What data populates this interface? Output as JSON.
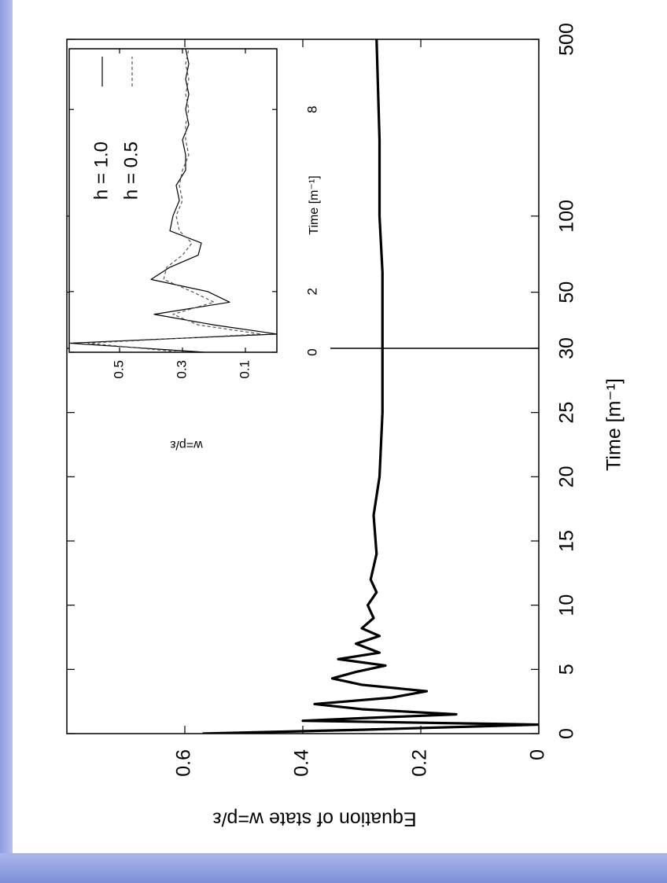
{
  "chart_data": [
    {
      "type": "line",
      "xlabel": "Time [m⁻¹]",
      "ylabel": "Equation of state w=p/ε",
      "xlim": [
        0,
        500
      ],
      "xbreak": 30,
      "xscale_above_break": "log",
      "xticks": [
        0,
        5,
        10,
        15,
        20,
        25,
        30,
        50,
        100,
        500
      ],
      "ylim": [
        0,
        0.8
      ],
      "yticks": [
        0,
        0.2,
        0.4,
        0.6
      ],
      "x": [
        0,
        0.3,
        0.7,
        1.0,
        1.2,
        1.5,
        1.9,
        2.3,
        2.8,
        3.3,
        3.8,
        4.3,
        4.8,
        5.3,
        5.8,
        6.3,
        7,
        7.6,
        8.2,
        9,
        10,
        11,
        12,
        14,
        17,
        20,
        25,
        30,
        40,
        60,
        100,
        200,
        500
      ],
      "series": [
        {
          "color": "#000000",
          "line_style": "solid",
          "values": [
            0.57,
            0.3,
            0.0,
            0.4,
            0.3,
            0.14,
            0.3,
            0.38,
            0.25,
            0.19,
            0.3,
            0.35,
            0.31,
            0.26,
            0.34,
            0.27,
            0.31,
            0.27,
            0.3,
            0.28,
            0.29,
            0.275,
            0.285,
            0.275,
            0.28,
            0.27,
            0.265,
            0.265,
            0.265,
            0.265,
            0.27,
            0.27,
            0.275
          ]
        }
      ]
    },
    {
      "type": "line",
      "xlabel": "Time [m⁻¹]",
      "ylabel": "w=p/ε",
      "xlim": [
        0,
        10
      ],
      "xticks": [
        0,
        2,
        8
      ],
      "ylim": [
        0,
        0.66
      ],
      "yticks": [
        0.1,
        0.3,
        0.5
      ],
      "legend": "top-right",
      "x": [
        0,
        0.3,
        0.6,
        0.9,
        1.25,
        1.65,
        2.0,
        2.4,
        2.8,
        3.2,
        3.6,
        4.0,
        4.5,
        5,
        5.5,
        6,
        6.5,
        7,
        7.5,
        8,
        8.5,
        9,
        9.5,
        10
      ],
      "series": [
        {
          "name": "h = 1.0",
          "color": "#000000",
          "line_style": "solid",
          "values": [
            0.23,
            0.66,
            0.0,
            0.2,
            0.39,
            0.15,
            0.22,
            0.4,
            0.34,
            0.25,
            0.24,
            0.34,
            0.33,
            0.31,
            0.32,
            0.29,
            0.29,
            0.3,
            0.28,
            0.29,
            0.28,
            0.29,
            0.28,
            0.29
          ]
        },
        {
          "name": "h = 0.5",
          "color": "#555555",
          "line_style": "dashed",
          "values": [
            0.3,
            0.6,
            0.05,
            0.25,
            0.33,
            0.2,
            0.27,
            0.36,
            0.35,
            0.3,
            0.27,
            0.31,
            0.32,
            0.3,
            0.31,
            0.3,
            0.28,
            0.29,
            0.29,
            0.28,
            0.29,
            0.28,
            0.29,
            0.28
          ]
        }
      ]
    }
  ]
}
